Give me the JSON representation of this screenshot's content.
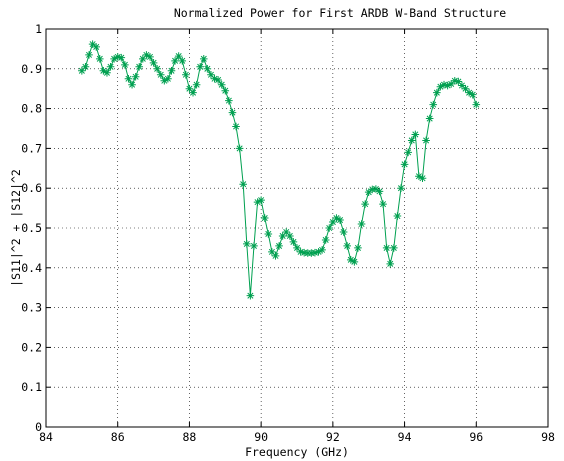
{
  "chart_data": {
    "type": "line",
    "title": "Normalized Power for First ARDB W-Band Structure",
    "xlabel": "Frequency (GHz)",
    "ylabel": "|S11|^2 + |S12|^2",
    "xlim": [
      84,
      98
    ],
    "ylim": [
      0,
      1
    ],
    "xticks": [
      84,
      86,
      88,
      90,
      92,
      94,
      96,
      98
    ],
    "yticks": [
      0,
      0.1,
      0.2,
      0.3,
      0.4,
      0.5,
      0.6,
      0.7,
      0.8,
      0.9,
      1
    ],
    "xtick_labels": [
      "84",
      "86",
      "88",
      "90",
      "92",
      "94",
      "96",
      "98"
    ],
    "ytick_labels": [
      "0",
      "0.1",
      "0.2",
      "0.3",
      "0.4",
      "0.5",
      "0.6",
      "0.7",
      "0.8",
      "0.9",
      "1"
    ],
    "grid": true,
    "marker": "asterisk",
    "series_color": "#00a050",
    "series": [
      {
        "x": [
          85.0,
          85.1,
          85.2,
          85.3,
          85.4,
          85.5,
          85.6,
          85.7,
          85.8,
          85.9,
          86.0,
          86.1,
          86.2,
          86.3,
          86.4,
          86.5,
          86.6,
          86.7,
          86.8,
          86.9,
          87.0,
          87.1,
          87.2,
          87.3,
          87.4,
          87.5,
          87.6,
          87.7,
          87.8,
          87.9,
          88.0,
          88.1,
          88.2,
          88.3,
          88.4,
          88.5,
          88.6,
          88.7,
          88.8,
          88.9,
          89.0,
          89.1,
          89.2,
          89.3,
          89.4,
          89.5,
          89.6,
          89.7,
          89.8,
          89.9,
          90.0,
          90.1,
          90.2,
          90.3,
          90.4,
          90.5,
          90.6,
          90.7,
          90.8,
          90.9,
          91.0,
          91.1,
          91.2,
          91.3,
          91.4,
          91.5,
          91.6,
          91.7,
          91.8,
          91.9,
          92.0,
          92.1,
          92.2,
          92.3,
          92.4,
          92.5,
          92.6,
          92.7,
          92.8,
          92.9,
          93.0,
          93.1,
          93.2,
          93.3,
          93.4,
          93.5,
          93.6,
          93.7,
          93.8,
          93.9,
          94.0,
          94.1,
          94.2,
          94.3,
          94.4,
          94.5,
          94.6,
          94.7,
          94.8,
          94.9,
          95.0,
          95.1,
          95.2,
          95.3,
          95.4,
          95.5,
          95.6,
          95.7,
          95.8,
          95.9,
          96.0
        ],
        "values": [
          0.895,
          0.905,
          0.935,
          0.962,
          0.955,
          0.925,
          0.895,
          0.89,
          0.905,
          0.925,
          0.93,
          0.928,
          0.91,
          0.875,
          0.86,
          0.88,
          0.905,
          0.925,
          0.935,
          0.93,
          0.915,
          0.9,
          0.885,
          0.87,
          0.875,
          0.895,
          0.92,
          0.932,
          0.92,
          0.885,
          0.85,
          0.84,
          0.86,
          0.905,
          0.925,
          0.9,
          0.885,
          0.875,
          0.872,
          0.86,
          0.845,
          0.82,
          0.79,
          0.755,
          0.7,
          0.61,
          0.46,
          0.33,
          0.455,
          0.565,
          0.57,
          0.525,
          0.485,
          0.44,
          0.43,
          0.455,
          0.48,
          0.49,
          0.48,
          0.465,
          0.45,
          0.44,
          0.438,
          0.437,
          0.437,
          0.438,
          0.44,
          0.445,
          0.47,
          0.5,
          0.515,
          0.525,
          0.52,
          0.49,
          0.455,
          0.42,
          0.415,
          0.45,
          0.51,
          0.56,
          0.59,
          0.597,
          0.598,
          0.592,
          0.56,
          0.45,
          0.41,
          0.45,
          0.53,
          0.6,
          0.66,
          0.69,
          0.72,
          0.735,
          0.63,
          0.625,
          0.72,
          0.775,
          0.81,
          0.84,
          0.855,
          0.86,
          0.858,
          0.862,
          0.87,
          0.868,
          0.858,
          0.85,
          0.84,
          0.835,
          0.81
        ]
      }
    ]
  }
}
